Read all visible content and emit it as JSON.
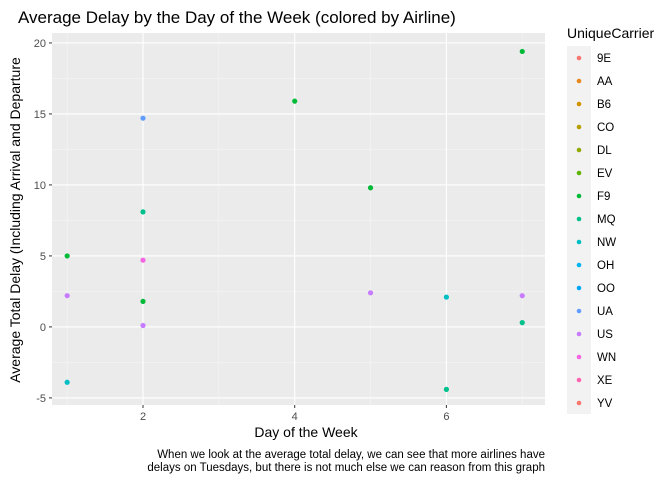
{
  "chart_data": {
    "type": "scatter",
    "title": "Average Delay by the Day of the Week (colored by Airline)",
    "xlabel": "Day of the Week",
    "ylabel": "Average Total Delay (Including Arrival and Departure",
    "xlim": [
      0.8,
      7.3
    ],
    "ylim": [
      -5.5,
      20.7
    ],
    "x_ticks": [
      2,
      4,
      6
    ],
    "x_minor_ticks": [
      1,
      3,
      5,
      7
    ],
    "y_ticks": [
      -5,
      0,
      5,
      10,
      15,
      20
    ],
    "y_minor_ticks": [
      -2.5,
      2.5,
      7.5,
      12.5,
      17.5
    ],
    "grid": true,
    "legend_title": "UniqueCarrier",
    "legend_position": "right",
    "legend": [
      {
        "name": "9E",
        "color": "#F8766D"
      },
      {
        "name": "AA",
        "color": "#E7861B"
      },
      {
        "name": "B6",
        "color": "#D39200"
      },
      {
        "name": "CO",
        "color": "#B79F00"
      },
      {
        "name": "DL",
        "color": "#93AA00"
      },
      {
        "name": "EV",
        "color": "#5EB300"
      },
      {
        "name": "F9",
        "color": "#00BA38"
      },
      {
        "name": "MQ",
        "color": "#00C08B"
      },
      {
        "name": "NW",
        "color": "#00BFC4"
      },
      {
        "name": "OH",
        "color": "#00B4F0"
      },
      {
        "name": "OO",
        "color": "#00A9FF"
      },
      {
        "name": "UA",
        "color": "#619CFF"
      },
      {
        "name": "US",
        "color": "#C77CFF"
      },
      {
        "name": "WN",
        "color": "#F564E3"
      },
      {
        "name": "XE",
        "color": "#FF64B0"
      },
      {
        "name": "YV",
        "color": "#F8766D"
      }
    ],
    "points": [
      {
        "x": 1,
        "y": 5.0,
        "color": "#00BA38"
      },
      {
        "x": 1,
        "y": 2.2,
        "color": "#C77CFF"
      },
      {
        "x": 1,
        "y": -3.9,
        "color": "#00BFC4"
      },
      {
        "x": 2,
        "y": 14.7,
        "color": "#619CFF"
      },
      {
        "x": 2,
        "y": 8.1,
        "color": "#00C08B"
      },
      {
        "x": 2,
        "y": 4.7,
        "color": "#F564E3"
      },
      {
        "x": 2,
        "y": 1.8,
        "color": "#00BA38"
      },
      {
        "x": 2,
        "y": 0.1,
        "color": "#C77CFF"
      },
      {
        "x": 4,
        "y": 15.9,
        "color": "#00BA38"
      },
      {
        "x": 5,
        "y": 9.8,
        "color": "#00BA38"
      },
      {
        "x": 5,
        "y": 2.4,
        "color": "#C77CFF"
      },
      {
        "x": 6,
        "y": 2.1,
        "color": "#00BFC4"
      },
      {
        "x": 6,
        "y": -4.4,
        "color": "#00C08B"
      },
      {
        "x": 7,
        "y": 19.4,
        "color": "#00BA38"
      },
      {
        "x": 7,
        "y": 2.2,
        "color": "#C77CFF"
      },
      {
        "x": 7,
        "y": 0.3,
        "color": "#00C08B"
      }
    ],
    "caption_lines": [
      "When we look at the average total delay, we can see that more airlines have",
      "delays on Tuesdays, but there is not much else we can reason from this graph"
    ]
  }
}
